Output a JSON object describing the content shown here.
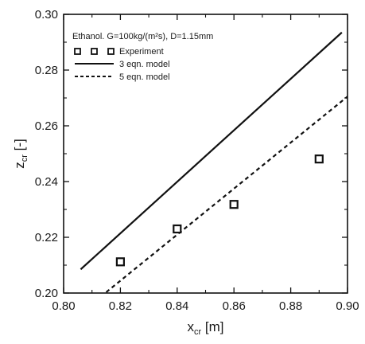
{
  "chart_data": {
    "type": "scatter",
    "title": "",
    "annotation": "Ethanol. G=100kg/(m²s), D=1.15mm",
    "xlabel": {
      "main": "x",
      "sub": "cr",
      "unit": " [m]"
    },
    "ylabel": {
      "main": "z",
      "sub": "cr",
      "unit": " [-]"
    },
    "xlim": [
      0.8,
      0.9
    ],
    "ylim": [
      0.2,
      0.3
    ],
    "xticks": [
      "0.80",
      "0.82",
      "0.84",
      "0.86",
      "0.88",
      "0.90"
    ],
    "yticks": [
      "0.20",
      "0.22",
      "0.24",
      "0.26",
      "0.28",
      "0.30"
    ],
    "grid": false,
    "legend_position": "top-left",
    "series": [
      {
        "name": "Experiment",
        "kind": "markers",
        "marker": "open-square",
        "color": "#111111",
        "points": [
          {
            "x": 0.82,
            "y": 0.2112
          },
          {
            "x": 0.84,
            "y": 0.223
          },
          {
            "x": 0.86,
            "y": 0.2318
          },
          {
            "x": 0.89,
            "y": 0.2481
          }
        ]
      },
      {
        "name": "3 eqn. model",
        "kind": "line",
        "dash": "solid",
        "color": "#111111",
        "points": [
          {
            "x": 0.806,
            "y": 0.2085
          },
          {
            "x": 0.898,
            "y": 0.2935
          }
        ]
      },
      {
        "name": "5 eqn. model",
        "kind": "line",
        "dash": "dashed",
        "color": "#111111",
        "points": [
          {
            "x": 0.815,
            "y": 0.2003
          },
          {
            "x": 0.9,
            "y": 0.2705
          }
        ]
      }
    ]
  }
}
